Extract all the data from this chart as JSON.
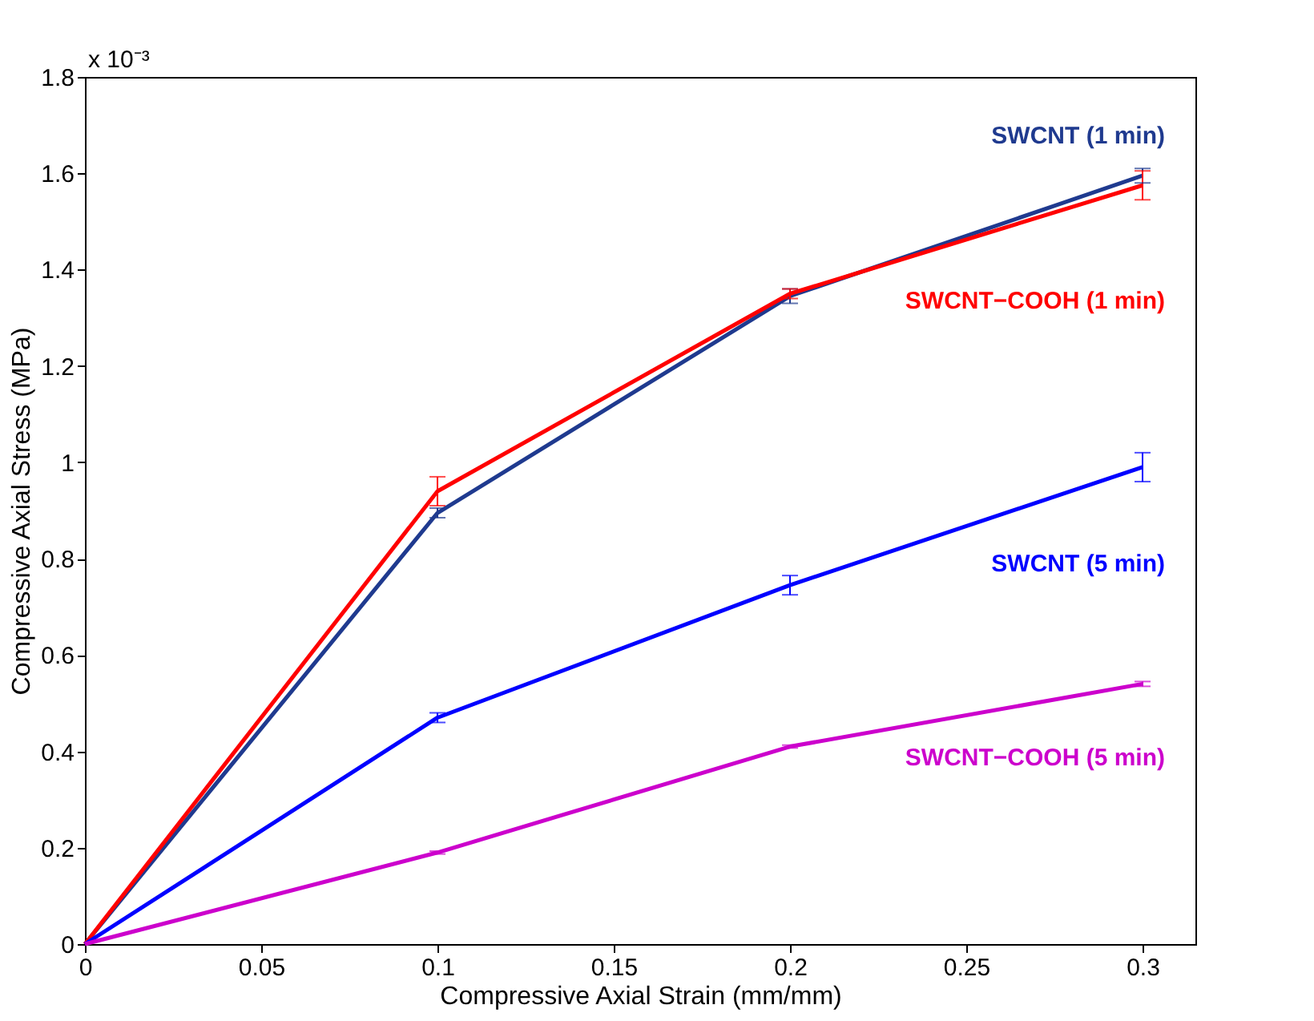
{
  "chart_data": {
    "type": "line",
    "xlabel": "Compressive Axial Strain (mm/mm)",
    "ylabel": "Compressive Axial Stress (MPa)",
    "annotations": [
      "x 10⁻³"
    ],
    "x": [
      0,
      0.1,
      0.2,
      0.3
    ],
    "xlim": [
      0,
      0.315
    ],
    "xticks": [
      0,
      0.05,
      0.1,
      0.15,
      0.2,
      0.25,
      0.3
    ],
    "ylim": [
      0,
      1.8
    ],
    "yticks": [
      0,
      0.2,
      0.4,
      0.6,
      0.8,
      1,
      1.2,
      1.4,
      1.6,
      1.8
    ],
    "grid": false,
    "legend": false,
    "marker": "none",
    "line_style": "solid",
    "series": [
      {
        "name": "SWCNT (1 min)",
        "color": "#1f3a8f",
        "values": [
          0,
          0.895,
          1.345,
          1.595
        ],
        "errors": [
          null,
          0.01,
          0.015,
          0.015
        ]
      },
      {
        "name": "SWCNT−COOH (1 min)",
        "color": "#ff0000",
        "values": [
          0,
          0.94,
          1.35,
          1.575
        ],
        "errors": [
          null,
          0.03,
          0.01,
          0.03
        ]
      },
      {
        "name": "SWCNT (5 min)",
        "color": "#0000ff",
        "values": [
          0,
          0.47,
          0.745,
          0.99
        ],
        "errors": [
          null,
          0.01,
          0.02,
          0.03
        ]
      },
      {
        "name": "SWCNT−COOH (5 min)",
        "color": "#cc00cc",
        "values": [
          0,
          0.19,
          0.41,
          0.54
        ],
        "errors": [
          null,
          0.003,
          0.003,
          0.005
        ]
      }
    ]
  }
}
